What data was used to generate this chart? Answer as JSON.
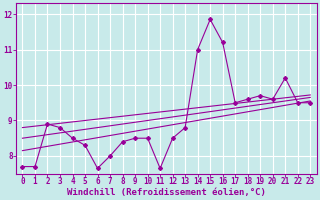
{
  "background_color": "#c8eaea",
  "grid_color": "#ffffff",
  "line_color": "#990099",
  "marker_color": "#990099",
  "x_label": "Windchill (Refroidissement éolien,°C)",
  "x_label_color": "#990099",
  "tick_color": "#990099",
  "xlim": [
    -0.5,
    23.5
  ],
  "ylim": [
    7.5,
    12.3
  ],
  "yticks": [
    8,
    9,
    10,
    11,
    12
  ],
  "xticks": [
    0,
    1,
    2,
    3,
    4,
    5,
    6,
    7,
    8,
    9,
    10,
    11,
    12,
    13,
    14,
    15,
    16,
    17,
    18,
    19,
    20,
    21,
    22,
    23
  ],
  "series1_x": [
    0,
    1,
    2,
    3,
    4,
    5,
    6,
    7,
    8,
    9,
    10,
    11,
    12,
    13,
    14,
    15,
    16,
    17,
    18,
    19,
    20,
    21,
    22,
    23
  ],
  "series1_y": [
    7.7,
    7.7,
    8.9,
    8.8,
    8.5,
    8.3,
    7.65,
    8.0,
    8.4,
    8.5,
    8.5,
    7.65,
    8.5,
    8.8,
    11.0,
    11.85,
    11.2,
    9.5,
    9.6,
    9.7,
    9.6,
    10.2,
    9.5,
    9.5
  ],
  "series2_x": [
    0,
    23
  ],
  "series2_y": [
    8.15,
    9.55
  ],
  "series3_x": [
    0,
    23
  ],
  "series3_y": [
    8.5,
    9.65
  ],
  "series4_x": [
    0,
    23
  ],
  "series4_y": [
    8.8,
    9.72
  ],
  "font_size_ticks": 5.5,
  "font_size_xlabel": 6.5
}
